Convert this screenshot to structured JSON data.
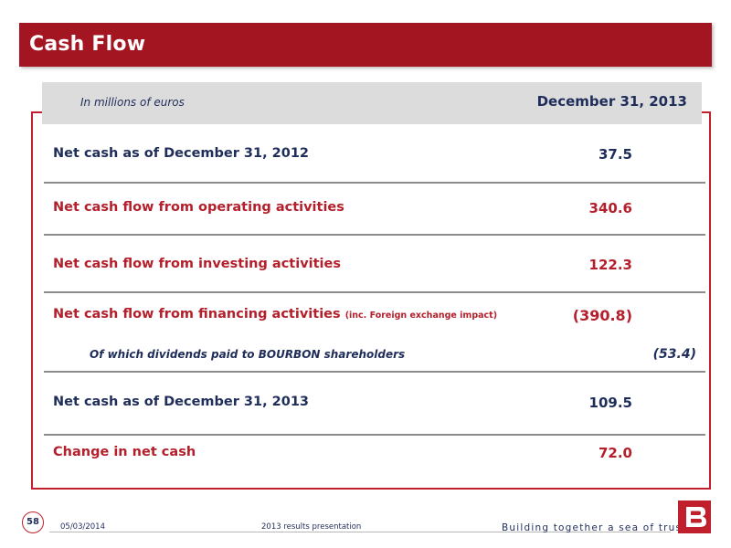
{
  "title": "Cash Flow",
  "table": {
    "unit_label": "In millions of euros",
    "column_header": "December 31, 2013",
    "rows": [
      {
        "label": "Net cash as of December 31, 2012",
        "value": "37.5"
      },
      {
        "label": "Net cash flow from operating activities",
        "value": "340.6"
      },
      {
        "label": "Net cash flow from investing activities",
        "value": "122.3"
      },
      {
        "label": "Net cash flow from financing activities",
        "note": "(inc. Foreign exchange impact)",
        "value": "(390.8)"
      },
      {
        "label": "Net cash as of December 31, 2013",
        "value": "109.5"
      },
      {
        "label": "Change in net cash",
        "value": "72.0"
      }
    ],
    "sub_row": {
      "label": "Of which dividends paid to BOURBON shareholders",
      "value": "(53.4)"
    }
  },
  "footer": {
    "page_number": "58",
    "date": "05/03/2014",
    "presentation": "2013 results presentation",
    "tagline": "Building together a sea of trust"
  },
  "colors": {
    "brand_red": "#a31621",
    "navy": "#1f2d5a",
    "row_red": "#b41f2b"
  },
  "logo_icon": "bourbon-b-logo-icon"
}
